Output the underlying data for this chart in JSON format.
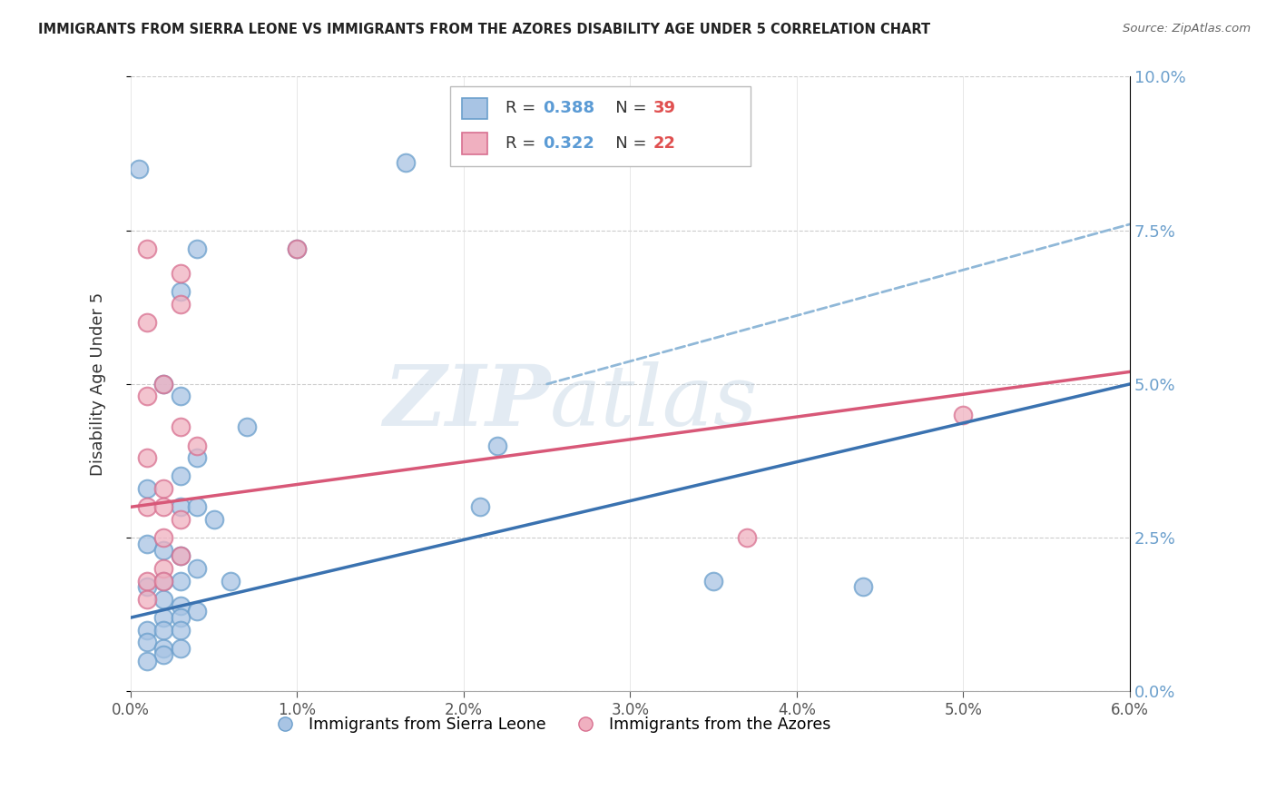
{
  "title": "IMMIGRANTS FROM SIERRA LEONE VS IMMIGRANTS FROM THE AZORES DISABILITY AGE UNDER 5 CORRELATION CHART",
  "source": "Source: ZipAtlas.com",
  "ylabel_left": "Disability Age Under 5",
  "legend_labels": [
    "Immigrants from Sierra Leone",
    "Immigrants from the Azores"
  ],
  "legend_r_vals": [
    "0.388",
    "0.322"
  ],
  "legend_n_vals": [
    "39",
    "22"
  ],
  "xlim": [
    0.0,
    0.06
  ],
  "ylim": [
    0.0,
    0.1
  ],
  "xticks": [
    0.0,
    0.01,
    0.02,
    0.03,
    0.04,
    0.05,
    0.06
  ],
  "yticks_right": [
    0.0,
    0.025,
    0.05,
    0.075,
    0.1
  ],
  "color_blue_fill": "#A8C4E4",
  "color_blue_edge": "#6B9FCC",
  "color_pink_fill": "#F0B0C0",
  "color_pink_edge": "#D87090",
  "color_trend_blue": "#3A72B0",
  "color_trend_pink": "#D85878",
  "color_dashed": "#90B8D8",
  "watermark_zip": "ZIP",
  "watermark_atlas": "atlas",
  "blue_points": [
    [
      0.0005,
      0.085
    ],
    [
      0.004,
      0.072
    ],
    [
      0.003,
      0.065
    ],
    [
      0.01,
      0.072
    ],
    [
      0.0165,
      0.086
    ],
    [
      0.002,
      0.05
    ],
    [
      0.003,
      0.048
    ],
    [
      0.007,
      0.043
    ],
    [
      0.022,
      0.04
    ],
    [
      0.004,
      0.038
    ],
    [
      0.003,
      0.035
    ],
    [
      0.001,
      0.033
    ],
    [
      0.003,
      0.03
    ],
    [
      0.021,
      0.03
    ],
    [
      0.004,
      0.03
    ],
    [
      0.005,
      0.028
    ],
    [
      0.001,
      0.024
    ],
    [
      0.002,
      0.023
    ],
    [
      0.003,
      0.022
    ],
    [
      0.004,
      0.02
    ],
    [
      0.002,
      0.018
    ],
    [
      0.003,
      0.018
    ],
    [
      0.006,
      0.018
    ],
    [
      0.001,
      0.017
    ],
    [
      0.002,
      0.015
    ],
    [
      0.003,
      0.014
    ],
    [
      0.004,
      0.013
    ],
    [
      0.002,
      0.012
    ],
    [
      0.003,
      0.012
    ],
    [
      0.001,
      0.01
    ],
    [
      0.002,
      0.01
    ],
    [
      0.003,
      0.01
    ],
    [
      0.001,
      0.008
    ],
    [
      0.002,
      0.007
    ],
    [
      0.003,
      0.007
    ],
    [
      0.002,
      0.006
    ],
    [
      0.001,
      0.005
    ],
    [
      0.035,
      0.018
    ],
    [
      0.044,
      0.017
    ]
  ],
  "pink_points": [
    [
      0.001,
      0.072
    ],
    [
      0.003,
      0.068
    ],
    [
      0.003,
      0.063
    ],
    [
      0.01,
      0.072
    ],
    [
      0.001,
      0.06
    ],
    [
      0.002,
      0.05
    ],
    [
      0.001,
      0.048
    ],
    [
      0.003,
      0.043
    ],
    [
      0.004,
      0.04
    ],
    [
      0.001,
      0.038
    ],
    [
      0.002,
      0.033
    ],
    [
      0.001,
      0.03
    ],
    [
      0.002,
      0.03
    ],
    [
      0.003,
      0.028
    ],
    [
      0.002,
      0.025
    ],
    [
      0.003,
      0.022
    ],
    [
      0.002,
      0.02
    ],
    [
      0.001,
      0.018
    ],
    [
      0.002,
      0.018
    ],
    [
      0.001,
      0.015
    ],
    [
      0.05,
      0.045
    ],
    [
      0.037,
      0.025
    ]
  ],
  "blue_line_x": [
    0.0,
    0.06
  ],
  "blue_line_y": [
    0.012,
    0.05
  ],
  "pink_line_x": [
    0.0,
    0.06
  ],
  "pink_line_y": [
    0.03,
    0.052
  ],
  "dashed_line_x": [
    0.025,
    0.06
  ],
  "dashed_line_y": [
    0.05,
    0.076
  ]
}
